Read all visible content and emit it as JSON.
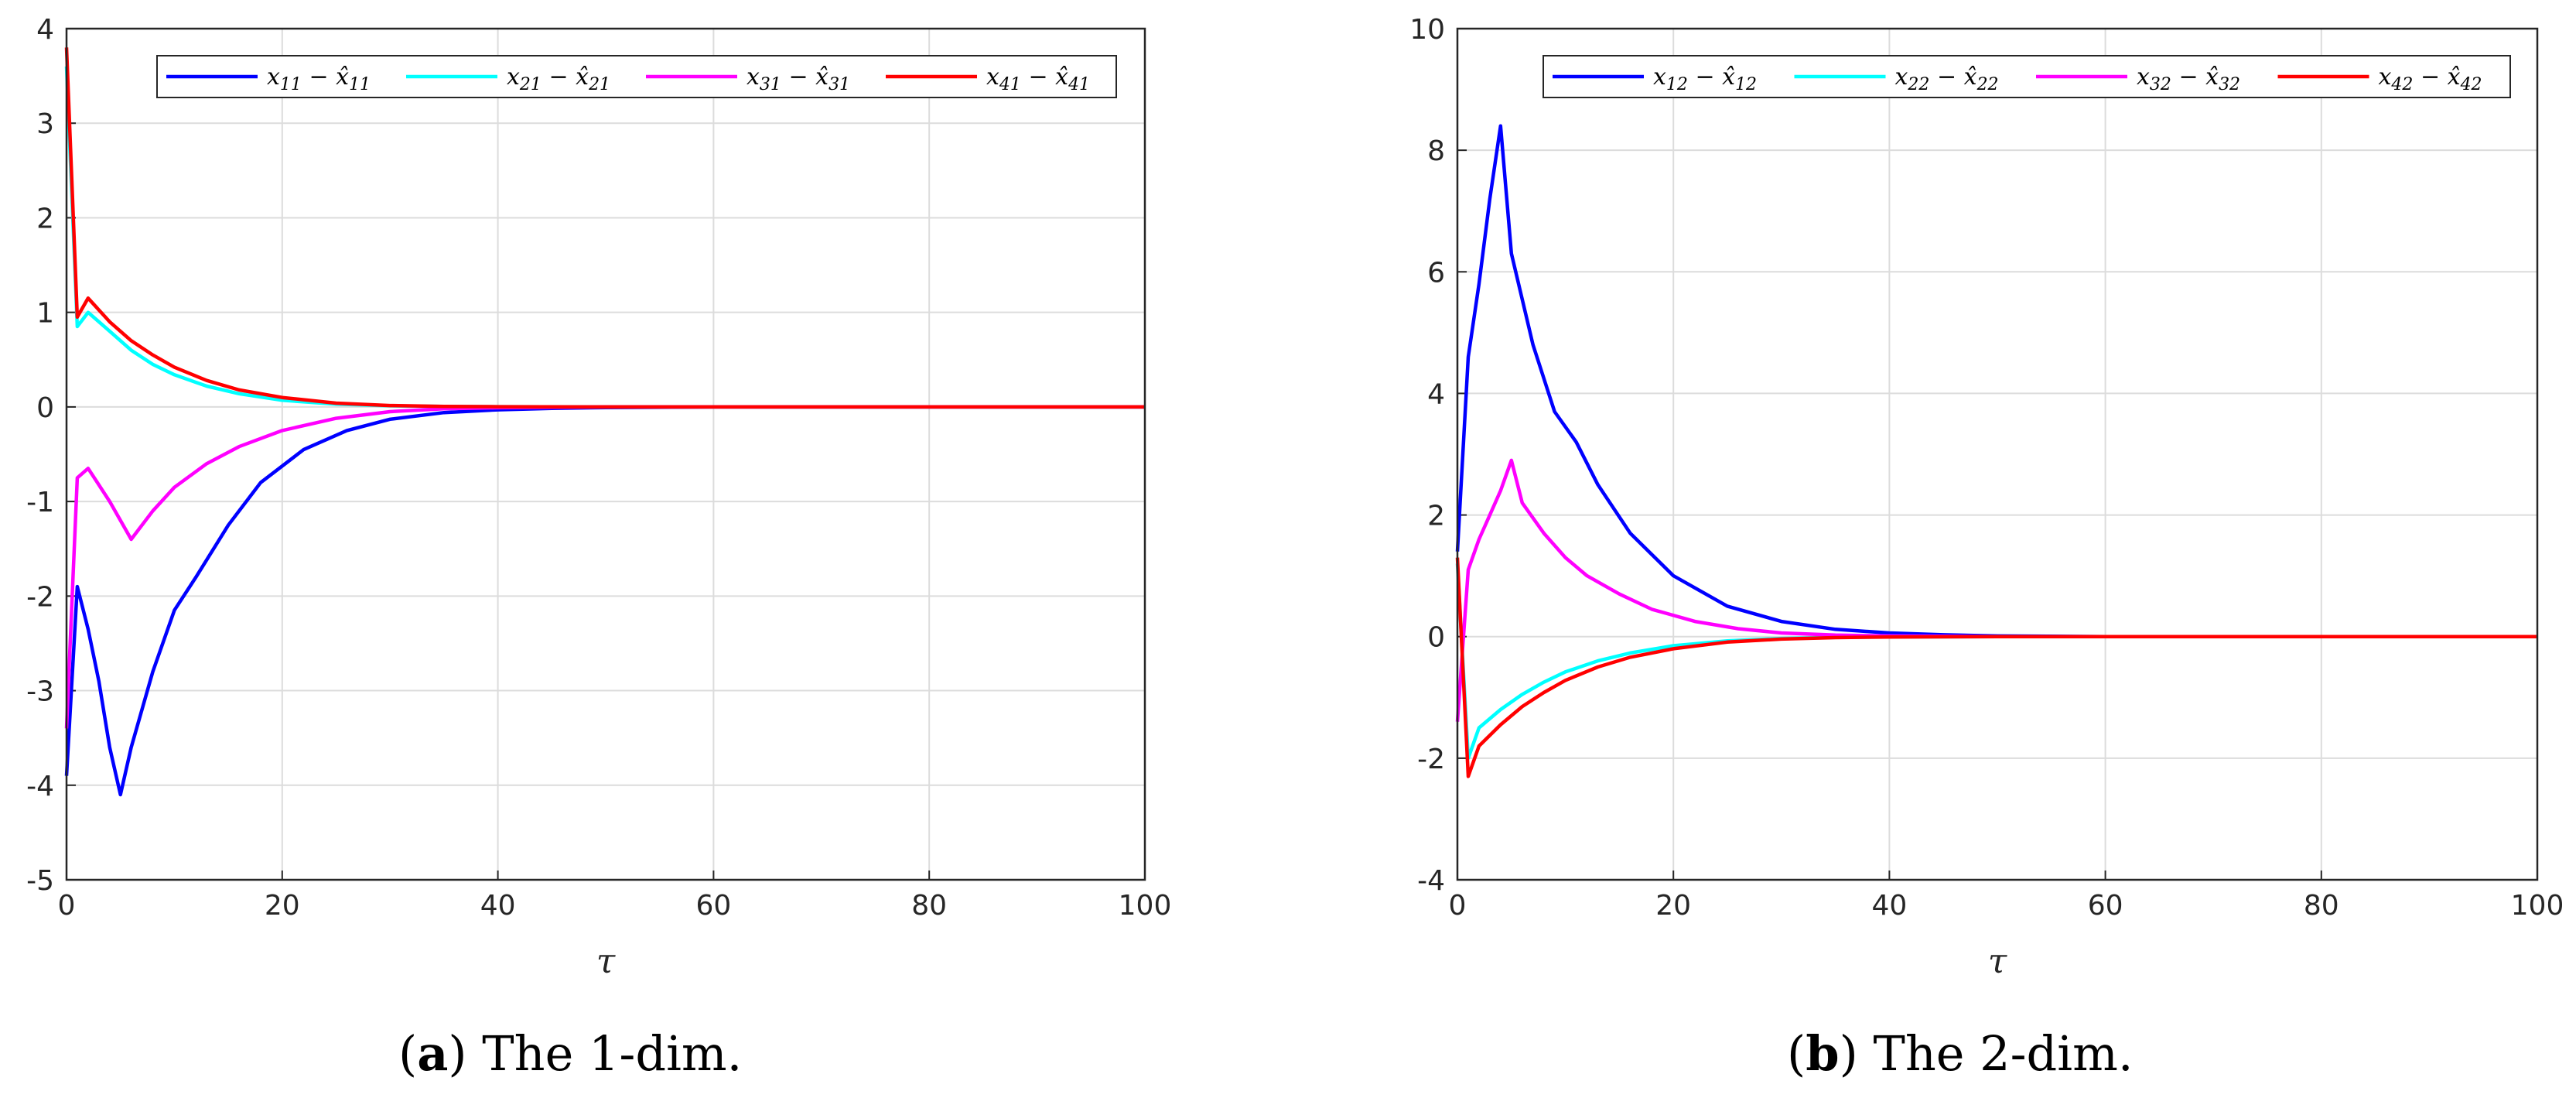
{
  "chart_data": [
    {
      "type": "line",
      "caption_label": "(a)",
      "caption_letter": "a",
      "caption_text": "The 1-dim.",
      "xlabel": "τ",
      "ylabel": "",
      "xlim": [
        0,
        100
      ],
      "ylim": [
        -5,
        4
      ],
      "xticks": [
        "0",
        "20",
        "40",
        "60",
        "80",
        "100"
      ],
      "yticks": [
        "-5",
        "-4",
        "-3",
        "-2",
        "-1",
        "0",
        "1",
        "2",
        "3",
        "4"
      ],
      "grid": true,
      "legend_position": "top",
      "series": [
        {
          "name": "x11 − x̂11",
          "legend_main": "x",
          "legend_sub": "11",
          "legend_hat": "x̂",
          "color": "#0000ff",
          "x": [
            0,
            1,
            2,
            3,
            4,
            5,
            6,
            8,
            10,
            12,
            15,
            18,
            22,
            26,
            30,
            35,
            40,
            45,
            50,
            60,
            70,
            80,
            90,
            100
          ],
          "y": [
            -3.9,
            -1.9,
            -2.35,
            -2.9,
            -3.6,
            -4.1,
            -3.6,
            -2.8,
            -2.15,
            -1.8,
            -1.25,
            -0.8,
            -0.45,
            -0.25,
            -0.13,
            -0.06,
            -0.03,
            -0.015,
            -0.007,
            0,
            0,
            0,
            0,
            0
          ]
        },
        {
          "name": "x21 − x̂21",
          "legend_main": "x",
          "legend_sub": "21",
          "legend_hat": "x̂",
          "color": "#00ffff",
          "x": [
            0,
            1,
            2,
            4,
            6,
            8,
            10,
            13,
            16,
            20,
            25,
            30,
            35,
            40,
            50,
            60,
            80,
            100
          ],
          "y": [
            3.6,
            0.85,
            1.0,
            0.8,
            0.6,
            0.45,
            0.34,
            0.22,
            0.14,
            0.07,
            0.03,
            0.012,
            0.005,
            0.002,
            0,
            0,
            0,
            0
          ]
        },
        {
          "name": "x31 − x̂31",
          "legend_main": "x",
          "legend_sub": "31",
          "legend_hat": "x̂",
          "color": "#ff00ff",
          "x": [
            0,
            1,
            2,
            4,
            6,
            8,
            10,
            13,
            16,
            20,
            25,
            30,
            35,
            40,
            50,
            60,
            80,
            100
          ],
          "y": [
            -3.4,
            -0.75,
            -0.65,
            -1.0,
            -1.4,
            -1.1,
            -0.85,
            -0.6,
            -0.42,
            -0.25,
            -0.12,
            -0.05,
            -0.02,
            -0.008,
            0,
            0,
            0,
            0
          ]
        },
        {
          "name": "x41 − x̂41",
          "legend_main": "x",
          "legend_sub": "41",
          "legend_hat": "x̂",
          "color": "#ff0000",
          "x": [
            0,
            1,
            2,
            4,
            6,
            8,
            10,
            13,
            16,
            20,
            25,
            30,
            35,
            40,
            50,
            60,
            80,
            100
          ],
          "y": [
            3.8,
            0.95,
            1.15,
            0.9,
            0.7,
            0.55,
            0.42,
            0.28,
            0.18,
            0.1,
            0.04,
            0.015,
            0.006,
            0.002,
            0,
            0,
            0,
            0
          ]
        }
      ]
    },
    {
      "type": "line",
      "caption_label": "(b)",
      "caption_letter": "b",
      "caption_text": "The 2-dim.",
      "xlabel": "τ",
      "ylabel": "",
      "xlim": [
        0,
        100
      ],
      "ylim": [
        -4,
        10
      ],
      "xticks": [
        "0",
        "20",
        "40",
        "60",
        "80",
        "100"
      ],
      "yticks": [
        "-4",
        "-2",
        "0",
        "2",
        "4",
        "6",
        "8",
        "10"
      ],
      "grid": true,
      "legend_position": "top",
      "series": [
        {
          "name": "x12 − x̂12",
          "legend_main": "x",
          "legend_sub": "12",
          "legend_hat": "x̂",
          "color": "#0000ff",
          "x": [
            0,
            1,
            2,
            3,
            4,
            5,
            7,
            9,
            11,
            13,
            16,
            20,
            25,
            30,
            35,
            40,
            45,
            50,
            60,
            70,
            80,
            100
          ],
          "y": [
            1.4,
            4.6,
            5.8,
            7.2,
            8.4,
            6.3,
            4.8,
            3.7,
            3.2,
            2.5,
            1.7,
            1.0,
            0.5,
            0.25,
            0.12,
            0.06,
            0.03,
            0.01,
            0,
            0,
            0,
            0
          ]
        },
        {
          "name": "x22 − x̂22",
          "legend_main": "x",
          "legend_sub": "22",
          "legend_hat": "x̂",
          "color": "#00ffff",
          "x": [
            0,
            1,
            2,
            4,
            6,
            8,
            10,
            13,
            16,
            20,
            25,
            30,
            35,
            40,
            50,
            60,
            80,
            100
          ],
          "y": [
            1.2,
            -2.0,
            -1.5,
            -1.2,
            -0.95,
            -0.75,
            -0.58,
            -0.4,
            -0.27,
            -0.15,
            -0.07,
            -0.03,
            -0.012,
            -0.005,
            0,
            0,
            0,
            0
          ]
        },
        {
          "name": "x32 − x̂32",
          "legend_main": "x",
          "legend_sub": "32",
          "legend_hat": "x̂",
          "color": "#ff00ff",
          "x": [
            0,
            1,
            2,
            3,
            4,
            5,
            6,
            8,
            10,
            12,
            15,
            18,
            22,
            26,
            30,
            35,
            40,
            50,
            60,
            80,
            100
          ],
          "y": [
            -1.4,
            1.1,
            1.6,
            2.0,
            2.4,
            2.9,
            2.2,
            1.7,
            1.3,
            1.0,
            0.7,
            0.45,
            0.25,
            0.13,
            0.06,
            0.025,
            0.01,
            0,
            0,
            0,
            0
          ]
        },
        {
          "name": "x42 − x̂42",
          "legend_main": "x",
          "legend_sub": "42",
          "legend_hat": "x̂",
          "color": "#ff0000",
          "x": [
            0,
            1,
            2,
            4,
            6,
            8,
            10,
            13,
            16,
            20,
            25,
            30,
            35,
            40,
            50,
            60,
            80,
            100
          ],
          "y": [
            1.3,
            -2.3,
            -1.8,
            -1.45,
            -1.15,
            -0.92,
            -0.72,
            -0.5,
            -0.34,
            -0.2,
            -0.09,
            -0.04,
            -0.016,
            -0.006,
            0,
            0,
            0,
            0
          ]
        }
      ]
    }
  ]
}
